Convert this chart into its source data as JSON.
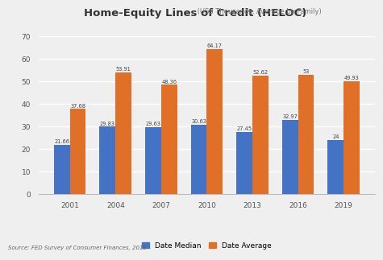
{
  "title_main": "Home-Equity Lines of Credit (HELOC)",
  "title_sub": " (US$ Thousands, Average by Family)",
  "years": [
    "2001",
    "2004",
    "2007",
    "2010",
    "2013",
    "2016",
    "2019"
  ],
  "median": [
    21.66,
    29.83,
    29.63,
    30.63,
    27.45,
    32.97,
    24
  ],
  "average": [
    37.68,
    53.91,
    48.36,
    64.17,
    52.62,
    53,
    49.93
  ],
  "median_labels": [
    "21.66",
    "29.83",
    "29.63",
    "30.63",
    "27.45",
    "32.97",
    "24"
  ],
  "average_labels": [
    "37.68",
    "53.91",
    "48.36",
    "64.17",
    "52.62",
    "53",
    "49.93"
  ],
  "median_color": "#4472C4",
  "average_color": "#E07028",
  "background_color": "#EFEFEF",
  "plot_bg_color": "#EFEFEF",
  "ylim": [
    0,
    72
  ],
  "yticks": [
    0,
    10,
    20,
    30,
    40,
    50,
    60,
    70
  ],
  "legend_median": "Date Median",
  "legend_average": "Date Average",
  "source_text": "Source: FED Survey of Consumer Finances, 2019",
  "bar_width": 0.35
}
